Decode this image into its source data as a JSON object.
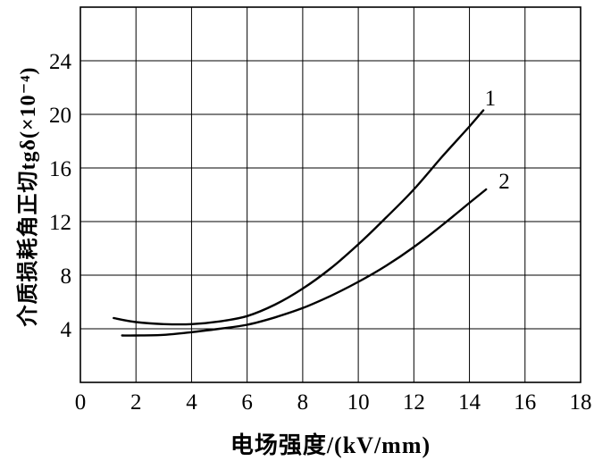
{
  "chart_data": {
    "type": "line",
    "title": "",
    "xlabel": "电场强度/(kV/mm)",
    "ylabel": "介质损耗角正切tgδ(×10⁻⁴)",
    "xlim": [
      0,
      18
    ],
    "ylim": [
      0,
      28
    ],
    "x_ticks": [
      0,
      2,
      4,
      6,
      8,
      10,
      12,
      14,
      16,
      18
    ],
    "y_ticks": [
      4,
      8,
      12,
      16,
      20,
      24
    ],
    "grid": true,
    "legend_position": "inline-labels",
    "series": [
      {
        "name": "1",
        "label_x": 14.75,
        "label_y": 21.2,
        "points": [
          [
            1.2,
            4.8
          ],
          [
            2,
            4.5
          ],
          [
            3,
            4.35
          ],
          [
            4,
            4.35
          ],
          [
            5,
            4.55
          ],
          [
            6,
            4.95
          ],
          [
            7,
            5.8
          ],
          [
            8,
            7.0
          ],
          [
            9,
            8.5
          ],
          [
            10,
            10.3
          ],
          [
            11,
            12.3
          ],
          [
            12,
            14.4
          ],
          [
            13,
            16.8
          ],
          [
            14,
            19.1
          ],
          [
            14.5,
            20.3
          ]
        ]
      },
      {
        "name": "2",
        "label_x": 15.25,
        "label_y": 15.0,
        "points": [
          [
            1.5,
            3.5
          ],
          [
            2,
            3.5
          ],
          [
            3,
            3.55
          ],
          [
            4,
            3.75
          ],
          [
            5,
            4.0
          ],
          [
            6,
            4.3
          ],
          [
            7,
            4.85
          ],
          [
            8,
            5.55
          ],
          [
            9,
            6.45
          ],
          [
            10,
            7.5
          ],
          [
            11,
            8.7
          ],
          [
            12,
            10.1
          ],
          [
            13,
            11.7
          ],
          [
            14,
            13.4
          ],
          [
            14.6,
            14.4
          ]
        ]
      }
    ]
  },
  "colors": {
    "background": "#ffffff",
    "line": "#000000",
    "grid": "#000000",
    "text": "#000000"
  }
}
